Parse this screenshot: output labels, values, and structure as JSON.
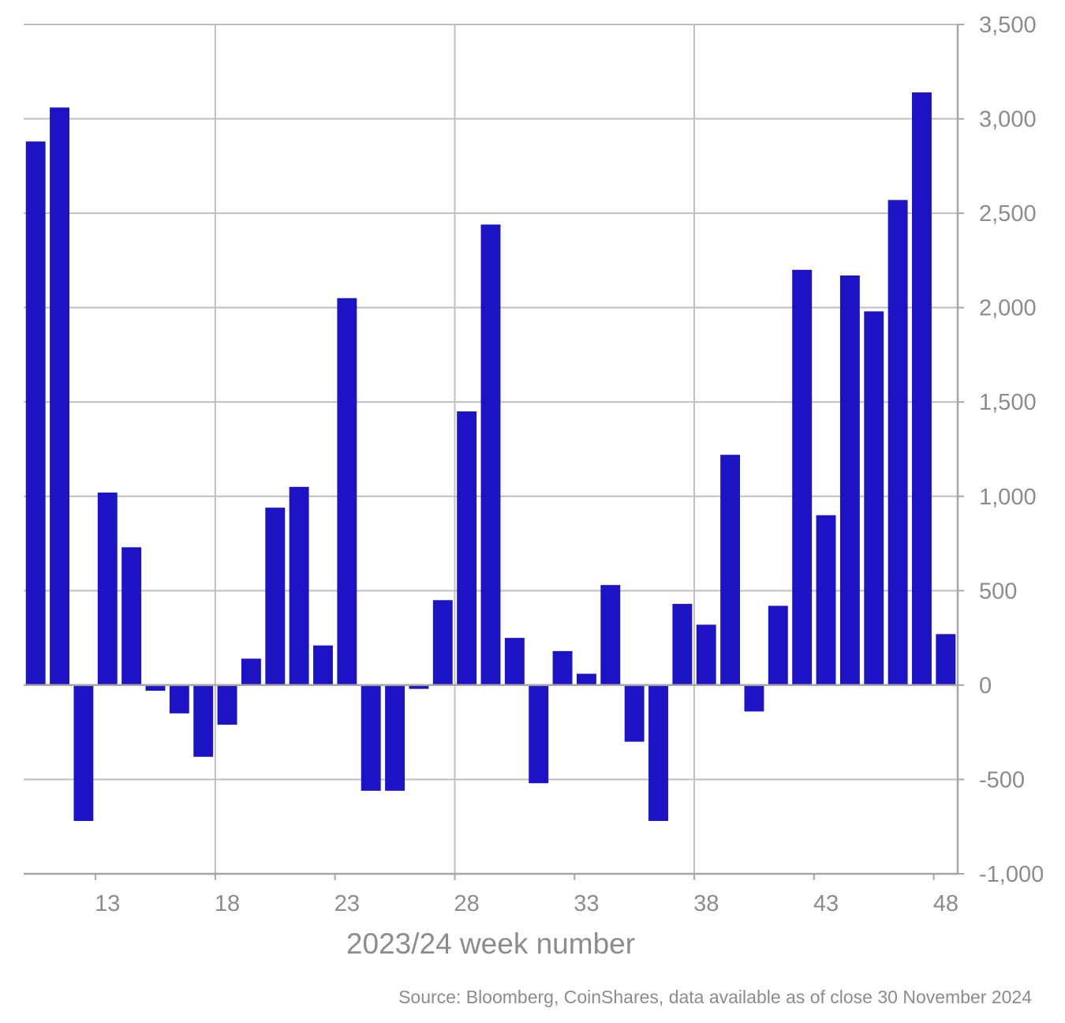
{
  "chart_data": {
    "type": "bar",
    "xlabel": "2023/24 week number",
    "x": [
      10,
      11,
      12,
      13,
      14,
      15,
      16,
      17,
      18,
      19,
      20,
      21,
      22,
      23,
      24,
      25,
      26,
      27,
      28,
      29,
      30,
      31,
      32,
      33,
      34,
      35,
      36,
      37,
      38,
      39,
      40,
      41,
      42,
      43,
      44,
      45,
      46,
      47,
      48
    ],
    "values": [
      2880,
      3060,
      -720,
      1020,
      730,
      -30,
      -150,
      -380,
      -210,
      140,
      940,
      1050,
      210,
      2050,
      -560,
      -560,
      -20,
      450,
      1450,
      2440,
      250,
      -520,
      180,
      60,
      530,
      -300,
      -720,
      430,
      320,
      1220,
      -140,
      420,
      2200,
      900,
      2170,
      1980,
      2570,
      3140,
      270
    ],
    "xticks": [
      13,
      18,
      23,
      28,
      33,
      38,
      43,
      48
    ],
    "ylim": [
      -1000,
      3500
    ],
    "yticks": [
      -1000,
      -500,
      0,
      500,
      1000,
      1500,
      2000,
      2500,
      3000,
      3500
    ],
    "ytick_labels": [
      "-1,000",
      "-500",
      "0",
      "500",
      "1,000",
      "1,500",
      "2,000",
      "2,500",
      "3,000",
      "3,500"
    ],
    "y_axis_side": "right",
    "grid": true,
    "bar_color": "#1c14c4",
    "grid_color": "#bfbfbf"
  },
  "source": "Source: Bloomberg, CoinShares, data available as of close 30 November 2024"
}
